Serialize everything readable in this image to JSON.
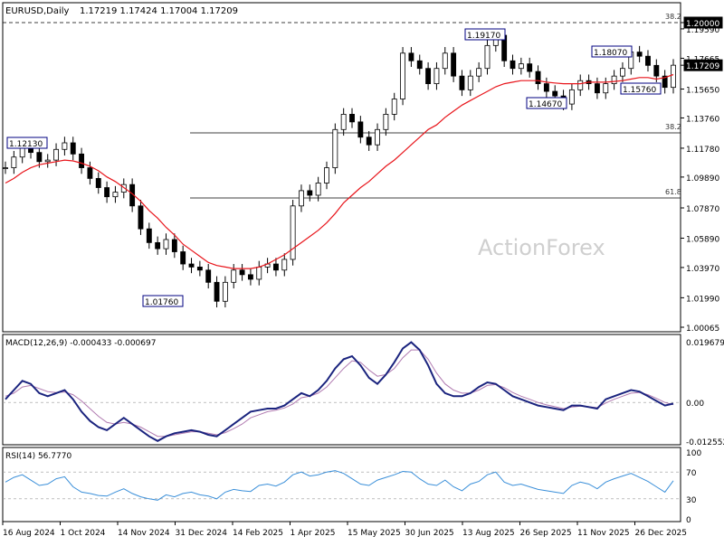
{
  "header": {
    "symbol": "EURUSD,Daily",
    "ohlc": "1.17219 1.17424 1.17004 1.17209"
  },
  "watermark": "ActionForex",
  "colors": {
    "candle": "#000000",
    "ma": "#e8151b",
    "macd": "#1a237e",
    "signal": "#b07ab0",
    "rsi": "#3a8fd9",
    "border": "#000000",
    "grid": "#9a9a9a",
    "label_border": "#000080"
  },
  "price_panel": {
    "y_ticks": [
      {
        "value": 1.2,
        "label": "1.20000",
        "highlight": true
      },
      {
        "value": 1.1959,
        "label": "1.19590"
      },
      {
        "value": 1.17665,
        "label": "1.17665"
      },
      {
        "value": 1.17209,
        "label": "1.17209",
        "current": true
      },
      {
        "value": 1.1565,
        "label": "1.15650"
      },
      {
        "value": 1.1376,
        "label": "1.13760"
      },
      {
        "value": 1.1178,
        "label": "1.11780"
      },
      {
        "value": 1.0989,
        "label": "1.09890"
      },
      {
        "value": 1.0787,
        "label": "1.07870"
      },
      {
        "value": 1.0589,
        "label": "1.05890"
      },
      {
        "value": 1.0397,
        "label": "1.03970"
      },
      {
        "value": 1.0199,
        "label": "1.01990"
      },
      {
        "value": 1.0006,
        "label": "1.00065"
      }
    ],
    "fib_levels": [
      {
        "label": "38.2",
        "value": 1.2,
        "style": "dashed"
      },
      {
        "label": "38.2",
        "value": 1.1278,
        "style": "solid"
      },
      {
        "label": "61.8",
        "value": 1.0852,
        "style": "solid"
      }
    ],
    "callouts": [
      "1.12130",
      "1.01760",
      "1.19170",
      "1.14670",
      "1.18070",
      "1.15760"
    ]
  },
  "macd_panel": {
    "label": "MACD(12,26,9) -0.000433 -0.000697",
    "y_ticks": [
      {
        "value": 0.019679,
        "label": "0.019679"
      },
      {
        "value": 0.0,
        "label": "0.00"
      },
      {
        "value": -0.012552,
        "label": "-0.012552"
      }
    ]
  },
  "rsi_panel": {
    "label": "RSI(14) 56.7770",
    "y_ticks": [
      {
        "value": 100,
        "label": "100"
      },
      {
        "value": 70,
        "label": "70"
      },
      {
        "value": 30,
        "label": "30"
      },
      {
        "value": 0,
        "label": "0"
      }
    ]
  },
  "x_axis": {
    "labels": [
      "16 Aug 2024",
      "1 Oct 2024",
      "14 Nov 2024",
      "31 Dec 2024",
      "14 Feb 2025",
      "1 Apr 2025",
      "15 May 2025",
      "30 Jun 2025",
      "13 Aug 2025",
      "26 Sep 2025",
      "11 Nov 2025",
      "26 Dec 2025"
    ]
  },
  "chart_data": {
    "type": "candlestick",
    "series": [
      {
        "name": "EURUSD close (approx.)",
        "values": [
          1.105,
          1.112,
          1.118,
          1.115,
          1.109,
          1.11,
          1.117,
          1.1213,
          1.114,
          1.105,
          1.098,
          1.092,
          1.086,
          1.089,
          1.094,
          1.08,
          1.065,
          1.056,
          1.052,
          1.058,
          1.05,
          1.042,
          1.04,
          1.038,
          1.03,
          1.0176,
          1.03,
          1.038,
          1.035,
          1.032,
          1.04,
          1.042,
          1.038,
          1.045,
          1.08,
          1.09,
          1.087,
          1.095,
          1.105,
          1.13,
          1.14,
          1.135,
          1.125,
          1.12,
          1.13,
          1.14,
          1.15,
          1.18,
          1.175,
          1.17,
          1.16,
          1.17,
          1.18,
          1.165,
          1.156,
          1.165,
          1.17,
          1.185,
          1.1917,
          1.175,
          1.17,
          1.173,
          1.168,
          1.16,
          1.155,
          1.152,
          1.1467,
          1.156,
          1.162,
          1.16,
          1.154,
          1.16,
          1.165,
          1.17,
          1.1807,
          1.178,
          1.172,
          1.165,
          1.1576,
          1.1721
        ]
      },
      {
        "name": "Moving average (red)",
        "values": [
          1.095,
          1.098,
          1.102,
          1.105,
          1.107,
          1.108,
          1.109,
          1.11,
          1.1095,
          1.108,
          1.106,
          1.103,
          1.099,
          1.096,
          1.092,
          1.088,
          1.083,
          1.077,
          1.072,
          1.066,
          1.061,
          1.055,
          1.051,
          1.047,
          1.043,
          1.041,
          1.04,
          1.039,
          1.039,
          1.039,
          1.04,
          1.042,
          1.045,
          1.048,
          1.052,
          1.056,
          1.06,
          1.064,
          1.069,
          1.075,
          1.082,
          1.087,
          1.092,
          1.096,
          1.101,
          1.106,
          1.11,
          1.115,
          1.12,
          1.125,
          1.13,
          1.133,
          1.138,
          1.142,
          1.146,
          1.149,
          1.152,
          1.155,
          1.158,
          1.16,
          1.161,
          1.162,
          1.162,
          1.162,
          1.161,
          1.1605,
          1.16,
          1.16,
          1.16,
          1.161,
          1.161,
          1.161,
          1.1615,
          1.162,
          1.163,
          1.164,
          1.164,
          1.163,
          1.164,
          1.166
        ]
      },
      {
        "name": "MACD",
        "values": [
          0.001,
          0.004,
          0.007,
          0.006,
          0.003,
          0.002,
          0.003,
          0.004,
          0.001,
          -0.003,
          -0.006,
          -0.008,
          -0.009,
          -0.007,
          -0.005,
          -0.007,
          -0.009,
          -0.011,
          -0.0125,
          -0.011,
          -0.01,
          -0.0095,
          -0.009,
          -0.0095,
          -0.0105,
          -0.011,
          -0.009,
          -0.007,
          -0.005,
          -0.003,
          -0.0025,
          -0.002,
          -0.002,
          -0.001,
          0.001,
          0.003,
          0.002,
          0.004,
          0.007,
          0.011,
          0.014,
          0.015,
          0.012,
          0.008,
          0.006,
          0.009,
          0.013,
          0.0175,
          0.0195,
          0.017,
          0.012,
          0.006,
          0.003,
          0.002,
          0.002,
          0.003,
          0.005,
          0.0065,
          0.006,
          0.004,
          0.002,
          0.001,
          0.0,
          -0.001,
          -0.0015,
          -0.002,
          -0.0025,
          -0.001,
          -0.001,
          -0.0015,
          -0.002,
          0.001,
          0.002,
          0.003,
          0.004,
          0.0035,
          0.002,
          0.0005,
          -0.001,
          -0.0004
        ]
      },
      {
        "name": "MACD signal",
        "values": [
          0.002,
          0.003,
          0.005,
          0.0055,
          0.0045,
          0.0035,
          0.0032,
          0.0034,
          0.0025,
          0.0005,
          -0.002,
          -0.0045,
          -0.0065,
          -0.007,
          -0.0065,
          -0.007,
          -0.008,
          -0.0095,
          -0.011,
          -0.011,
          -0.0105,
          -0.01,
          -0.0095,
          -0.0095,
          -0.01,
          -0.0105,
          -0.0098,
          -0.0085,
          -0.007,
          -0.005,
          -0.004,
          -0.003,
          -0.0025,
          -0.0018,
          -0.0005,
          0.0015,
          0.002,
          0.003,
          0.005,
          0.008,
          0.011,
          0.0135,
          0.013,
          0.0105,
          0.0085,
          0.009,
          0.011,
          0.0145,
          0.017,
          0.017,
          0.014,
          0.0095,
          0.006,
          0.004,
          0.003,
          0.003,
          0.004,
          0.0055,
          0.0058,
          0.0048,
          0.0032,
          0.002,
          0.001,
          0.0,
          -0.0008,
          -0.0014,
          -0.002,
          -0.0015,
          -0.0012,
          -0.0014,
          -0.0017,
          -0.0002,
          0.001,
          0.002,
          0.003,
          0.0032,
          0.0025,
          0.0013,
          0.0,
          -0.0007
        ]
      },
      {
        "name": "RSI",
        "values": [
          55,
          62,
          66,
          58,
          50,
          52,
          60,
          63,
          48,
          40,
          38,
          35,
          34,
          40,
          45,
          38,
          33,
          30,
          28,
          36,
          33,
          38,
          40,
          36,
          34,
          30,
          40,
          44,
          42,
          41,
          50,
          52,
          49,
          55,
          66,
          70,
          64,
          66,
          70,
          72,
          68,
          60,
          52,
          50,
          58,
          62,
          66,
          71,
          70,
          60,
          52,
          50,
          58,
          48,
          42,
          52,
          56,
          66,
          70,
          55,
          50,
          52,
          48,
          44,
          42,
          40,
          38,
          50,
          55,
          52,
          45,
          55,
          60,
          64,
          68,
          62,
          56,
          48,
          40,
          57
        ]
      }
    ],
    "ylim_price": [
      1.0006,
      1.2
    ],
    "ylim_macd": [
      -0.012552,
      0.019679
    ],
    "ylim_rsi": [
      0,
      100
    ]
  }
}
